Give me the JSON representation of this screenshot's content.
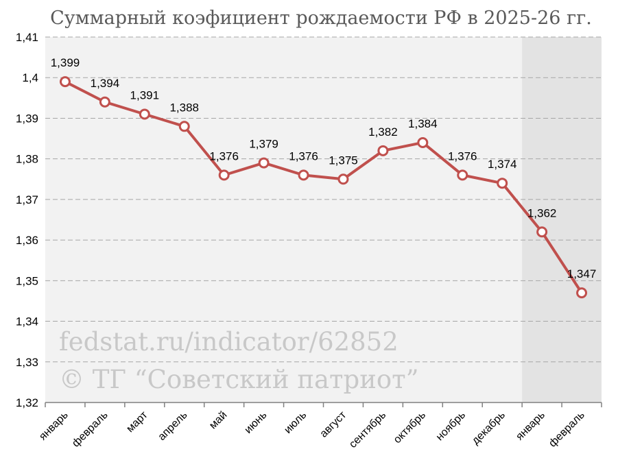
{
  "chart_data": {
    "type": "line",
    "title": "Суммарный коэфициент рождаемости РФ в 2025-26 гг.",
    "xlabel": "",
    "ylabel": "",
    "categories": [
      "январь",
      "февраль",
      "март",
      "апрель",
      "май",
      "июнь",
      "июль",
      "август",
      "сентябрь",
      "октябрь",
      "ноябрь",
      "декабрь",
      "январь",
      "февраль"
    ],
    "series": [
      {
        "values": [
          1.399,
          1.394,
          1.391,
          1.388,
          1.376,
          1.379,
          1.376,
          1.375,
          1.382,
          1.384,
          1.376,
          1.374,
          1.362,
          1.347
        ],
        "labels": [
          "1,399",
          "1,394",
          "1,391",
          "1,388",
          "1,376",
          "1,379",
          "1,376",
          "1,375",
          "1,382",
          "1,384",
          "1,376",
          "1,374",
          "1,362",
          "1,347"
        ],
        "color": "#c0504d"
      }
    ],
    "ylim": [
      1.32,
      1.41
    ],
    "yticks": [
      1.32,
      1.33,
      1.34,
      1.35,
      1.36,
      1.37,
      1.38,
      1.39,
      1.4,
      1.41
    ],
    "ytick_labels": [
      "1,32",
      "1,33",
      "1,34",
      "1,35",
      "1,36",
      "1,37",
      "1,38",
      "1,39",
      "1,4",
      "1,41"
    ],
    "grid": true,
    "legend": "none",
    "shaded_categories": [
      12,
      13
    ],
    "colors": {
      "plot_bg": "#f2f2f2",
      "shade_bg": "#e3e3e3",
      "grid": "#a6a6a6",
      "line": "#c0504d",
      "marker_fill": "#ffffff",
      "watermark": "#c8c8c8"
    }
  },
  "watermark": {
    "line1": "fedstat.ru/indicator/62852",
    "line2": "© ТГ “Советский патриот”"
  }
}
